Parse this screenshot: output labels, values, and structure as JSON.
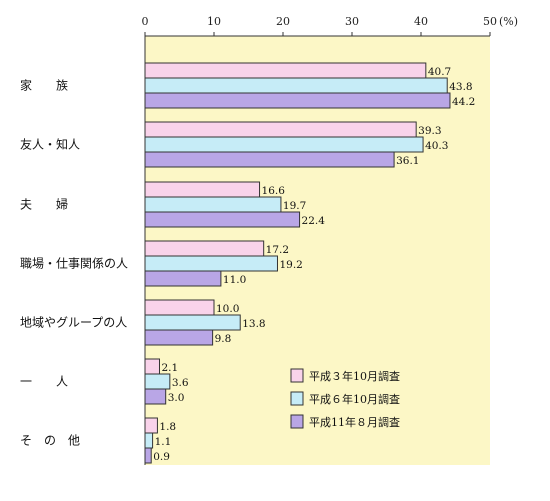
{
  "chart_data": {
    "type": "bar",
    "orientation": "horizontal",
    "unit_label": "(%)",
    "xlim": [
      0,
      50
    ],
    "xticks": [
      0,
      10,
      20,
      30,
      40,
      50
    ],
    "categories": [
      {
        "label": "家　　族",
        "key": "family"
      },
      {
        "label": "友人・知人",
        "key": "friends"
      },
      {
        "label": "夫　　婦",
        "key": "couple"
      },
      {
        "label": "職場・仕事関係の人",
        "key": "work"
      },
      {
        "label": "地域やグループの人",
        "key": "community"
      },
      {
        "label": "一　　人",
        "key": "alone"
      },
      {
        "label": "そ　の　他",
        "key": "other"
      }
    ],
    "series": [
      {
        "name": "平成３年10月調査",
        "color": "#f9d3ea",
        "values": [
          40.7,
          39.3,
          16.6,
          17.2,
          10.0,
          2.1,
          1.8
        ]
      },
      {
        "name": "平成６年10月調査",
        "color": "#c6ecf7",
        "values": [
          43.8,
          40.3,
          19.7,
          19.2,
          13.8,
          3.6,
          1.1
        ]
      },
      {
        "name": "平成11年８月調査",
        "color": "#b9a6e6",
        "values": [
          44.2,
          36.1,
          22.4,
          11.0,
          9.8,
          3.0,
          0.9
        ]
      }
    ],
    "legend_position": "lower-right",
    "grid": false,
    "plot_background": "#fcf7c6"
  }
}
